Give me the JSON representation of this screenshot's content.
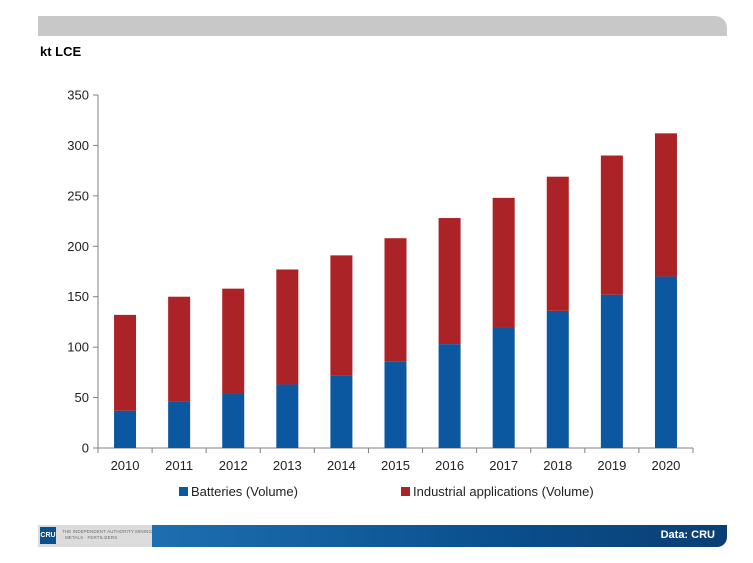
{
  "unit_label": "kt LCE",
  "source_note": "Data: CRU",
  "logo": {
    "mark": "CRU",
    "tagline": "THE INDEPENDENT AUTHORITY MINING · METALS · FERTILIZERS"
  },
  "colors": {
    "batteries": "#0b57a0",
    "industrial": "#ab2326",
    "axis": "#7f7f7f"
  },
  "chart_data": {
    "type": "bar",
    "stacked": true,
    "title": "",
    "xlabel": "",
    "ylabel": "kt LCE",
    "ylim": [
      0,
      350
    ],
    "yticks": [
      0,
      50,
      100,
      150,
      200,
      250,
      300,
      350
    ],
    "grid": false,
    "legend_position": "bottom",
    "categories": [
      "2010",
      "2011",
      "2012",
      "2013",
      "2014",
      "2015",
      "2016",
      "2017",
      "2018",
      "2019",
      "2020"
    ],
    "series": [
      {
        "name": "Batteries (Volume)",
        "values": [
          37,
          46,
          54,
          63,
          72,
          86,
          103,
          119,
          136,
          152,
          170
        ]
      },
      {
        "name": "Industrial applications (Volume)",
        "values": [
          95,
          104,
          104,
          114,
          119,
          122,
          125,
          129,
          133,
          138,
          142
        ]
      }
    ]
  }
}
